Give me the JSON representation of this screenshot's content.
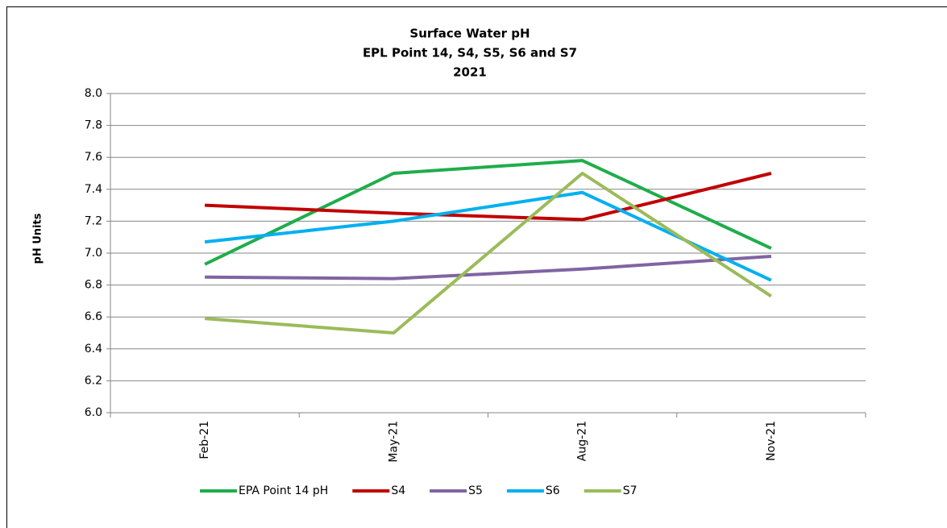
{
  "chart_data": {
    "type": "line",
    "title": [
      "Surface Water pH",
      "EPL Point 14, S4, S5, S6 and S7",
      "2021"
    ],
    "y_label": "pH Units",
    "categories": [
      "Feb-21",
      "May-21",
      "Aug-21",
      "Nov-21"
    ],
    "series": [
      {
        "name": "EPA Point 14 pH",
        "color": "#1fad4b",
        "values": [
          6.93,
          7.5,
          7.58,
          7.03
        ]
      },
      {
        "name": "S4",
        "color": "#c00000",
        "values": [
          7.3,
          7.25,
          7.21,
          7.5
        ]
      },
      {
        "name": "S5",
        "color": "#8064a2",
        "values": [
          6.85,
          6.84,
          6.9,
          6.98
        ]
      },
      {
        "name": "S6",
        "color": "#00b0f0",
        "values": [
          7.07,
          7.2,
          7.38,
          6.83
        ]
      },
      {
        "name": "S7",
        "color": "#9bbb59",
        "values": [
          6.59,
          6.5,
          7.5,
          6.73
        ]
      }
    ],
    "ylim": [
      6,
      8
    ],
    "yticks": [
      {
        "value": 6,
        "label": "6.0"
      },
      6.2,
      6.4,
      6.6,
      6.8,
      {
        "value": 7,
        "label": "7.0"
      },
      7.2,
      7.4,
      7.6,
      7.8,
      {
        "value": 8,
        "label": "8.0"
      }
    ],
    "grid": true,
    "legend": "bottom"
  }
}
